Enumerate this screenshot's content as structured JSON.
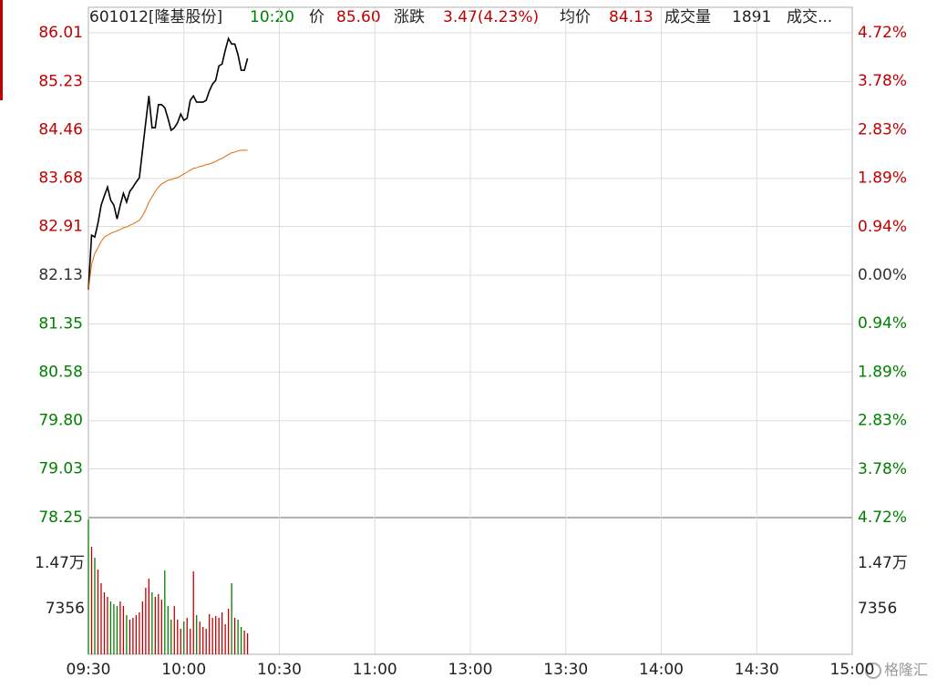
{
  "header": {
    "code": "601012[隆基股份]",
    "time": "10:20",
    "price_label": "价",
    "price": "85.60",
    "change_label": "涨跌",
    "change": "3.47(4.23%)",
    "avg_label": "均价",
    "avg": "84.13",
    "vol_label": "成交量",
    "vol": "1891",
    "more": "成交..."
  },
  "watermark": "格隆汇",
  "chart_data": {
    "type": "line",
    "x": [
      "09:30",
      "09:31",
      "09:32",
      "09:33",
      "09:34",
      "09:35",
      "09:36",
      "09:37",
      "09:38",
      "09:39",
      "09:40",
      "09:41",
      "09:42",
      "09:43",
      "09:44",
      "09:45",
      "09:46",
      "09:47",
      "09:48",
      "09:49",
      "09:50",
      "09:51",
      "09:52",
      "09:53",
      "09:54",
      "09:55",
      "09:56",
      "09:57",
      "09:58",
      "09:59",
      "10:00",
      "10:01",
      "10:02",
      "10:03",
      "10:04",
      "10:05",
      "10:06",
      "10:07",
      "10:08",
      "10:09",
      "10:10",
      "10:11",
      "10:12",
      "10:13",
      "10:14",
      "10:15",
      "10:16",
      "10:17",
      "10:18",
      "10:19",
      "10:20"
    ],
    "xlim": [
      "09:30",
      "15:00"
    ],
    "xticks": [
      "09:30",
      "10:00",
      "10:30",
      "11:00",
      "13:00",
      "13:30",
      "14:00",
      "14:30",
      "15:00"
    ],
    "series": [
      {
        "color": "#000000",
        "values": [
          81.9,
          82.77,
          82.74,
          82.96,
          83.25,
          83.4,
          83.54,
          83.33,
          83.25,
          83.03,
          83.25,
          83.44,
          83.3,
          83.47,
          83.54,
          83.62,
          83.69,
          84.13,
          84.57,
          85.0,
          84.49,
          84.49,
          84.86,
          84.86,
          84.81,
          84.64,
          84.45,
          84.49,
          84.57,
          84.71,
          84.61,
          84.64,
          84.93,
          85.0,
          84.9,
          84.9,
          84.9,
          84.93,
          85.08,
          85.19,
          85.25,
          85.48,
          85.51,
          85.73,
          85.92,
          85.83,
          85.83,
          85.66,
          85.41,
          85.41,
          85.6
        ]
      },
      {
        "color": "#e06a00",
        "values": [
          81.9,
          82.3,
          82.48,
          82.57,
          82.67,
          82.74,
          82.77,
          82.8,
          82.82,
          82.84,
          82.86,
          82.89,
          82.9,
          82.93,
          82.95,
          82.98,
          83.01,
          83.08,
          83.18,
          83.3,
          83.38,
          83.47,
          83.54,
          83.59,
          83.62,
          83.65,
          83.66,
          83.68,
          83.69,
          83.72,
          83.75,
          83.78,
          83.81,
          83.84,
          83.85,
          83.87,
          83.88,
          83.9,
          83.91,
          83.93,
          83.95,
          83.98,
          84.0,
          84.03,
          84.06,
          84.09,
          84.1,
          84.12,
          84.13,
          84.13,
          84.13
        ]
      }
    ],
    "ylim": [
      78.25,
      86.01
    ],
    "yticks": [
      86.01,
      85.23,
      84.46,
      83.68,
      82.91,
      82.13,
      81.35,
      80.58,
      {
        "value": 79.8,
        "label": "79.80"
      },
      79.03,
      78.25
    ],
    "y2lim": [
      -4.72,
      4.72
    ],
    "y2ticks": [
      {
        "value": 4.72,
        "label": "4.72%"
      },
      {
        "value": 3.78,
        "label": "3.78%"
      },
      {
        "value": 2.83,
        "label": "2.83%"
      },
      {
        "value": 1.89,
        "label": "1.89%"
      },
      {
        "value": 0.94,
        "label": "0.94%"
      },
      {
        "value": 0,
        "label": "0.00%"
      },
      {
        "value": -0.94,
        "label": "0.94%"
      },
      {
        "value": -1.89,
        "label": "1.89%"
      },
      {
        "value": -2.83,
        "label": "2.83%"
      },
      {
        "value": -3.78,
        "label": "3.78%"
      },
      {
        "value": -4.72,
        "label": "4.72%"
      }
    ],
    "up_color": "#c00000",
    "down_color": "#008000",
    "flat_color": "#333333",
    "grid": true,
    "volume": {
      "values": [
        21750,
        17350,
        15580,
        13670,
        11470,
        10000,
        9260,
        8530,
        8090,
        7790,
        8530,
        7790,
        6320,
        5590,
        5880,
        6320,
        6760,
        8530,
        10730,
        12200,
        10000,
        9260,
        9700,
        8820,
        13520,
        7790,
        5590,
        7790,
        5590,
        4120,
        5290,
        5880,
        4120,
        13380,
        6320,
        5290,
        4410,
        4120,
        6470,
        5880,
        6170,
        5880,
        6760,
        4850,
        7350,
        11470,
        5880,
        5590,
        4410,
        3820,
        3380
      ],
      "ylim": [
        0,
        22050
      ],
      "yticks": [
        {
          "value": 14700,
          "label": "1.47万"
        },
        7356
      ]
    }
  }
}
